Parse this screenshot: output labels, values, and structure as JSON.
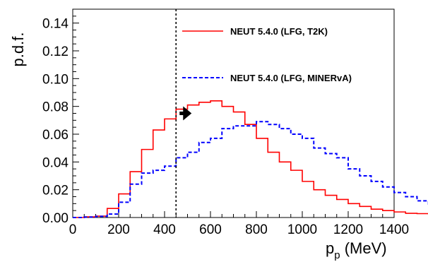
{
  "chart_data": {
    "type": "line",
    "style": "step-histogram",
    "title": "",
    "xlabel": "p",
    "xlabel_subscript": "p",
    "xlabel_unit": "(MeV)",
    "ylabel": "p.d.f.",
    "xlim": [
      0,
      1400
    ],
    "ylim": [
      0,
      0.15
    ],
    "xticks": [
      0,
      200,
      400,
      600,
      800,
      1000,
      1200,
      1400
    ],
    "xtick_labels": [
      "0",
      "200",
      "400",
      "600",
      "800",
      "1000",
      "1200",
      "1400"
    ],
    "yticks": [
      0,
      0.02,
      0.04,
      0.06,
      0.08,
      0.1,
      0.12,
      0.14
    ],
    "ytick_labels": [
      "0.00",
      "0.02",
      "0.04",
      "0.06",
      "0.08",
      "0.10",
      "0.12",
      "0.14"
    ],
    "grid": false,
    "legend_position": "top-right",
    "bin_width": 50,
    "bin_edges_start": 0,
    "cut_line_x": 450,
    "arrow_direction": "right",
    "series": [
      {
        "name": "NEUT 5.4.0 (LFG, T2K)",
        "color": "#ff0000",
        "dash": "solid",
        "values": [
          0.0,
          0.0005,
          0.001,
          0.0065,
          0.017,
          0.033,
          0.049,
          0.063,
          0.071,
          0.078,
          0.081,
          0.083,
          0.084,
          0.08,
          0.076,
          0.067,
          0.057,
          0.047,
          0.04,
          0.034,
          0.026,
          0.02,
          0.016,
          0.013,
          0.01,
          0.008,
          0.006,
          0.005,
          0.004,
          0.003,
          0.0028,
          0.002
        ]
      },
      {
        "name": "NEUT 5.4.0 (LFG, MINERvA)",
        "color": "#0000ff",
        "dash": "dashed",
        "values": [
          0.0,
          0.0003,
          0.0008,
          0.0025,
          0.011,
          0.024,
          0.032,
          0.034,
          0.037,
          0.043,
          0.047,
          0.054,
          0.057,
          0.064,
          0.066,
          0.066,
          0.069,
          0.067,
          0.064,
          0.06,
          0.057,
          0.05,
          0.046,
          0.043,
          0.035,
          0.03,
          0.026,
          0.022,
          0.018,
          0.015,
          0.012,
          0.009
        ]
      }
    ]
  }
}
